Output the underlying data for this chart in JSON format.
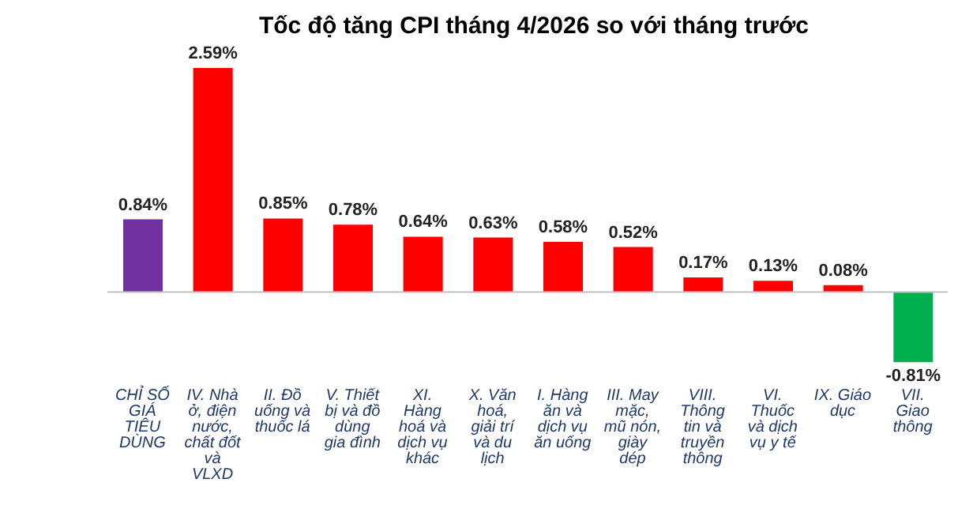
{
  "chart_data": {
    "type": "bar",
    "title": "Tốc độ tăng CPI tháng 4/2026 so với tháng trước",
    "categories": [
      "CHỈ SỐ GIÁ TIÊU DÙNG",
      "IV. Nhà ở, điện nước, chất đốt và VLXD",
      "II. Đồ uống và thuốc lá",
      "V. Thiết bị và đồ dùng gia đình",
      "XI. Hàng hoá và dịch vụ khác",
      "X. Văn hoá, giải trí và du lịch",
      "I. Hàng ăn và dịch vụ ăn uống",
      "III. May mặc, mũ nón, giày dép",
      "VIII. Thông tin và truyền thông",
      "VI. Thuốc và dịch vụ y tế",
      "IX. Giáo dục",
      "VII. Giao thông"
    ],
    "values": [
      0.84,
      2.59,
      0.85,
      0.78,
      0.64,
      0.63,
      0.58,
      0.52,
      0.17,
      0.13,
      0.08,
      -0.81
    ],
    "colors": [
      "#7030a0",
      "#ff0000",
      "#ff0000",
      "#ff0000",
      "#ff0000",
      "#ff0000",
      "#ff0000",
      "#ff0000",
      "#ff0000",
      "#ff0000",
      "#ff0000",
      "#00b050"
    ],
    "value_labels": [
      "0.84%",
      "2.59%",
      "0.85%",
      "0.78%",
      "0.64%",
      "0.63%",
      "0.58%",
      "0.52%",
      "0.17%",
      "0.13%",
      "0.08%",
      "-0.81%"
    ],
    "tick_labels": "x"
  }
}
